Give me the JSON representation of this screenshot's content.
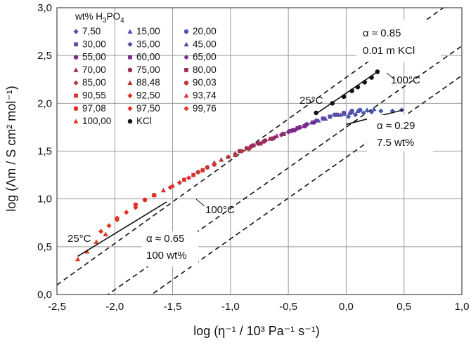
{
  "chart_data": {
    "type": "scatter",
    "xlabel": "log (η⁻¹ / 10³ Pa⁻¹ s⁻¹)",
    "ylabel": "log (Λm / S cm² mol⁻¹)",
    "xlim": [
      -2.5,
      1.0
    ],
    "ylim": [
      0.0,
      3.0
    ],
    "x_ticks": [
      "-2,5",
      "-2,0",
      "-1,5",
      "-1,0",
      "-0,5",
      "0,0",
      "0,5",
      "1,0"
    ],
    "y_ticks": [
      "0,0",
      "0,5",
      "1,0",
      "1,5",
      "2,0",
      "2,5",
      "3,0"
    ],
    "grid": true,
    "legend_title": "wt% H3PO4",
    "legend_title_parts": [
      "wt% H",
      "3",
      "PO",
      "4"
    ],
    "series": [
      {
        "name": "7,50",
        "marker": "diamond",
        "color": "#4a56b4",
        "points": [
          [
            0.02,
            1.86
          ],
          [
            0.08,
            1.88
          ],
          [
            0.15,
            1.9
          ],
          [
            0.22,
            1.91
          ],
          [
            0.3,
            1.92
          ],
          [
            0.4,
            1.92
          ],
          [
            0.48,
            1.93
          ]
        ]
      },
      {
        "name": "15,00",
        "marker": "triangle",
        "color": "#4a56b4",
        "points": [
          [
            -0.05,
            1.88
          ],
          [
            0.03,
            1.9
          ],
          [
            0.1,
            1.92
          ],
          [
            0.18,
            1.93
          ],
          [
            0.24,
            1.94
          ]
        ]
      },
      {
        "name": "20,00",
        "marker": "circle",
        "color": "#4a56b4",
        "points": [
          [
            -0.1,
            1.88
          ],
          [
            -0.02,
            1.9
          ],
          [
            0.05,
            1.92
          ],
          [
            0.12,
            1.93
          ]
        ]
      },
      {
        "name": "30,00",
        "marker": "square",
        "color": "#5a4aa6",
        "points": [
          [
            -0.2,
            1.84
          ],
          [
            -0.14,
            1.86
          ],
          [
            -0.08,
            1.88
          ],
          [
            -0.02,
            1.89
          ],
          [
            0.05,
            1.91
          ]
        ]
      },
      {
        "name": "35,00",
        "marker": "diamond",
        "color": "#5a4aa6",
        "points": [
          [
            -0.26,
            1.82
          ],
          [
            -0.2,
            1.84
          ],
          [
            -0.14,
            1.86
          ],
          [
            -0.08,
            1.88
          ]
        ]
      },
      {
        "name": "45,00",
        "marker": "triangle",
        "color": "#5a4aa6",
        "points": [
          [
            -0.36,
            1.77
          ],
          [
            -0.3,
            1.8
          ],
          [
            -0.24,
            1.82
          ],
          [
            -0.18,
            1.84
          ]
        ]
      },
      {
        "name": "55,00",
        "marker": "circle",
        "color": "#7a2a8a",
        "points": [
          [
            -0.46,
            1.72
          ],
          [
            -0.4,
            1.75
          ],
          [
            -0.34,
            1.78
          ],
          [
            -0.28,
            1.8
          ]
        ]
      },
      {
        "name": "60,00",
        "marker": "square",
        "color": "#7a2a8a",
        "points": [
          [
            -0.54,
            1.68
          ],
          [
            -0.48,
            1.71
          ],
          [
            -0.42,
            1.74
          ],
          [
            -0.36,
            1.76
          ]
        ]
      },
      {
        "name": "65,00",
        "marker": "diamond",
        "color": "#7a2a8a",
        "points": [
          [
            -0.62,
            1.64
          ],
          [
            -0.56,
            1.67
          ],
          [
            -0.5,
            1.7
          ],
          [
            -0.44,
            1.72
          ]
        ]
      },
      {
        "name": "70,00",
        "marker": "triangle",
        "color": "#9c2a5c",
        "points": [
          [
            -0.72,
            1.6
          ],
          [
            -0.66,
            1.63
          ],
          [
            -0.6,
            1.66
          ],
          [
            -0.54,
            1.68
          ]
        ]
      },
      {
        "name": "75,00",
        "marker": "circle",
        "color": "#9c2a5c",
        "points": [
          [
            -0.82,
            1.55
          ],
          [
            -0.76,
            1.58
          ],
          [
            -0.7,
            1.61
          ],
          [
            -0.64,
            1.63
          ]
        ]
      },
      {
        "name": "80,00",
        "marker": "square",
        "color": "#9c2a5c",
        "points": [
          [
            -0.92,
            1.5
          ],
          [
            -0.86,
            1.53
          ],
          [
            -0.8,
            1.56
          ],
          [
            -0.74,
            1.58
          ]
        ]
      },
      {
        "name": "85,00",
        "marker": "diamond",
        "color": "#b03a3a",
        "points": [
          [
            -1.02,
            1.44
          ],
          [
            -0.96,
            1.47
          ],
          [
            -0.9,
            1.5
          ],
          [
            -0.84,
            1.52
          ]
        ]
      },
      {
        "name": "88,48",
        "marker": "triangle",
        "color": "#b03a3a",
        "points": [
          [
            -1.14,
            1.38
          ],
          [
            -1.08,
            1.41
          ],
          [
            -1.02,
            1.44
          ],
          [
            -0.96,
            1.46
          ]
        ]
      },
      {
        "name": "90,03",
        "marker": "circle",
        "color": "#c43a3a",
        "points": [
          [
            -1.28,
            1.28
          ],
          [
            -1.2,
            1.33
          ],
          [
            -1.14,
            1.36
          ]
        ]
      },
      {
        "name": "90,55",
        "marker": "square",
        "color": "#d8322e",
        "points": [
          [
            -1.4,
            1.2
          ],
          [
            -1.32,
            1.25
          ],
          [
            -1.24,
            1.3
          ]
        ]
      },
      {
        "name": "92,50",
        "marker": "diamond",
        "color": "#d8322e",
        "points": [
          [
            -1.52,
            1.12
          ],
          [
            -1.44,
            1.17
          ],
          [
            -1.36,
            1.22
          ]
        ]
      },
      {
        "name": "93,74",
        "marker": "triangle",
        "color": "#d8322e",
        "points": [
          [
            -1.66,
            1.04
          ],
          [
            -1.58,
            1.09
          ],
          [
            -1.5,
            1.14
          ]
        ]
      },
      {
        "name": "97,08",
        "marker": "circle",
        "color": "#e0301e",
        "points": [
          [
            -1.82,
            0.94
          ],
          [
            -1.74,
            0.99
          ],
          [
            -1.66,
            1.04
          ]
        ]
      },
      {
        "name": "97,50",
        "marker": "diamond",
        "color": "#e0301e",
        "points": [
          [
            -1.98,
            0.8
          ],
          [
            -1.9,
            0.86
          ],
          [
            -1.82,
            0.91
          ]
        ]
      },
      {
        "name": "99,76",
        "marker": "diamond",
        "color": "#e2381c",
        "points": [
          [
            -2.12,
            0.66
          ],
          [
            -2.05,
            0.72
          ],
          [
            -1.98,
            0.78
          ]
        ]
      },
      {
        "name": "100,00",
        "marker": "triangle",
        "color": "#e2381c",
        "points": [
          [
            -2.32,
            0.37
          ],
          [
            -2.24,
            0.45
          ],
          [
            -2.16,
            0.55
          ],
          [
            -2.08,
            0.63
          ]
        ]
      },
      {
        "name": "KCl",
        "marker": "circle",
        "color": "#111111",
        "points": [
          [
            -0.26,
            1.9
          ],
          [
            -0.12,
            2.0
          ],
          [
            -0.02,
            2.07
          ],
          [
            0.05,
            2.13
          ],
          [
            0.1,
            2.17
          ],
          [
            0.16,
            2.22
          ],
          [
            0.22,
            2.27
          ],
          [
            0.27,
            2.33
          ]
        ]
      }
    ],
    "reference_lines": [
      {
        "alpha": "0.85",
        "points": [
          [
            -2.5,
            -0.375
          ],
          [
            1.0,
            2.6
          ]
        ]
      },
      {
        "alpha": "0.65",
        "points": [
          [
            -2.5,
            0.1
          ],
          [
            0.84,
            3.0
          ]
        ]
      },
      {
        "alpha": "0.29",
        "points": [
          [
            -2.5,
            -0.7
          ],
          [
            1.0,
            2.29
          ]
        ]
      }
    ],
    "fit_lines": [
      {
        "name": "100 wt%",
        "points": [
          [
            -2.32,
            0.4
          ],
          [
            -1.55,
            0.97
          ]
        ]
      },
      {
        "name": "KCl",
        "points": [
          [
            -0.26,
            1.89
          ],
          [
            0.27,
            2.33
          ]
        ]
      },
      {
        "name": "7.5 wt%",
        "points": [
          [
            0.0,
            1.78
          ],
          [
            0.49,
            1.93
          ]
        ]
      }
    ],
    "annotations": {
      "alpha_kcl": "α ≈ 0.85",
      "conc_kcl": "0.01 m KCl",
      "alpha_75": "α ≈ 0.29",
      "conc_75": "7.5 wt%",
      "alpha_100": "α ≈ 0.65",
      "conc_100": "100 wt%",
      "t25_kcl": "25°C",
      "t100_kcl": "100°C",
      "t25_acid": "25°C",
      "t100_acid": "100°C"
    }
  }
}
